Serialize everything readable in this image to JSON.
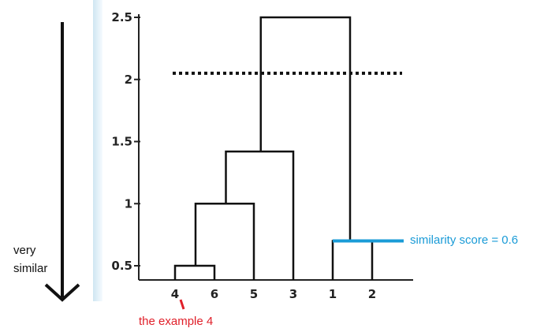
{
  "colors": {
    "accent_blue": "#1a9bd7",
    "annotation_red": "#e0202a",
    "ink": "#111111",
    "panel_gradient_from": "#cfe6f2",
    "panel_gradient_to": "#f6fbfe"
  },
  "chart_data": {
    "type": "dendrogram",
    "y_ticks": [
      "0.5",
      "1",
      "1.5",
      "2",
      "2.5"
    ],
    "y_tick_values": [
      0.5,
      1,
      1.5,
      2,
      2.5
    ],
    "ylim": [
      0.5,
      2.5
    ],
    "leaves": [
      "4",
      "6",
      "5",
      "3",
      "1",
      "2"
    ],
    "merges": [
      {
        "children": [
          "4",
          "6"
        ],
        "height": 0.5
      },
      {
        "children": [
          "4,6",
          "5"
        ],
        "height": 1.0
      },
      {
        "children": [
          "4,6,5",
          "3"
        ],
        "height": 1.42
      },
      {
        "children": [
          "1",
          "2"
        ],
        "height": 0.7
      },
      {
        "children": [
          "4,6,5,3",
          "1,2"
        ],
        "height": 2.5
      }
    ],
    "cut_line": {
      "height": 2.05,
      "style": "dotted"
    }
  },
  "annotations": {
    "similarity_label": "similarity score = 0.6",
    "example_label": "the example 4",
    "very_similar_line1": "very",
    "very_similar_line2": "similar"
  }
}
